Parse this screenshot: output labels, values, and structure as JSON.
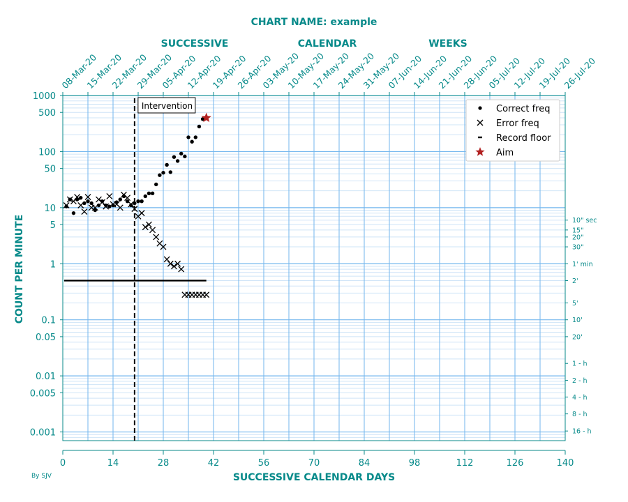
{
  "chart_data": {
    "type": "scatter",
    "title": "CHART NAME: example",
    "top_header_words": [
      "SUCCESSIVE",
      "CALENDAR",
      "WEEKS"
    ],
    "xlabel": "SUCCESSIVE CALENDAR DAYS",
    "ylabel": "COUNT PER MINUTE",
    "credit": "By SJV",
    "xlim": [
      0,
      140
    ],
    "ylim": [
      0.0007,
      1000
    ],
    "y_scale": "log",
    "grid": true,
    "legend_position": "top-right",
    "colors": {
      "text": "#078a8a",
      "grid": "#72b6ee",
      "grid_minor": "#cfe4f7",
      "axis": "#078a8a",
      "aim": "#b22222",
      "data": "#000000"
    },
    "x_ticks": [
      0,
      14,
      28,
      42,
      56,
      70,
      84,
      98,
      112,
      126,
      140
    ],
    "y_ticks": [
      {
        "v": 1000,
        "label": "1000"
      },
      {
        "v": 500,
        "label": "500"
      },
      {
        "v": 100,
        "label": "100"
      },
      {
        "v": 50,
        "label": "50"
      },
      {
        "v": 10,
        "label": "10"
      },
      {
        "v": 5,
        "label": "5"
      },
      {
        "v": 1,
        "label": "1"
      },
      {
        "v": 0.1,
        "label": "0.1"
      },
      {
        "v": 0.05,
        "label": "0.05"
      },
      {
        "v": 0.01,
        "label": "0.01"
      },
      {
        "v": 0.005,
        "label": "0.005"
      },
      {
        "v": 0.001,
        "label": "0.001"
      }
    ],
    "week_labels": [
      "08-Mar-20",
      "15-Mar-20",
      "22-Mar-20",
      "29-Mar-20",
      "05-Apr-20",
      "12-Apr-20",
      "19-Apr-20",
      "26-Apr-20",
      "03-May-20",
      "10-May-20",
      "17-May-20",
      "24-May-20",
      "31-May-20",
      "07-Jun-20",
      "14-Jun-20",
      "21-Jun-20",
      "28-Jun-20",
      "05-Jul-20",
      "12-Jul-20",
      "19-Jul-20",
      "26-Jul-20"
    ],
    "timing_labels": [
      {
        "v": 6,
        "label": "10\" sec"
      },
      {
        "v": 4,
        "label": "15\""
      },
      {
        "v": 3,
        "label": "20\""
      },
      {
        "v": 2,
        "label": "30\""
      },
      {
        "v": 1,
        "label": "1' min"
      },
      {
        "v": 0.5,
        "label": "2'"
      },
      {
        "v": 0.2,
        "label": "5'"
      },
      {
        "v": 0.1,
        "label": "10'"
      },
      {
        "v": 0.05,
        "label": "20'"
      },
      {
        "v": 0.0167,
        "label": "1 - h"
      },
      {
        "v": 0.0083,
        "label": "2 - h"
      },
      {
        "v": 0.0042,
        "label": "4 - h"
      },
      {
        "v": 0.0021,
        "label": "8 - h"
      },
      {
        "v": 0.00104,
        "label": "16 - h"
      }
    ],
    "phase_line": {
      "x": 20,
      "label": "Intervention"
    },
    "series": [
      {
        "name": "Correct freq",
        "marker": "dot",
        "points": [
          [
            1,
            10.5
          ],
          [
            2,
            14
          ],
          [
            3,
            8
          ],
          [
            4,
            14
          ],
          [
            5,
            15
          ],
          [
            6,
            12
          ],
          [
            7,
            13
          ],
          [
            8,
            12
          ],
          [
            9,
            9
          ],
          [
            10,
            11
          ],
          [
            11,
            13
          ],
          [
            12,
            11
          ],
          [
            13,
            10.5
          ],
          [
            14,
            11
          ],
          [
            15,
            12.5
          ],
          [
            16,
            14
          ],
          [
            17,
            16
          ],
          [
            18,
            13
          ],
          [
            19,
            11
          ],
          [
            20,
            12
          ],
          [
            21,
            13
          ],
          [
            22,
            13
          ],
          [
            23,
            16
          ],
          [
            24,
            18
          ],
          [
            25,
            18
          ],
          [
            26,
            26
          ],
          [
            27,
            38
          ],
          [
            28,
            42
          ],
          [
            29,
            58
          ],
          [
            30,
            43
          ],
          [
            31,
            80
          ],
          [
            32,
            68
          ],
          [
            33,
            92
          ],
          [
            34,
            82
          ],
          [
            35,
            180
          ],
          [
            36,
            150
          ],
          [
            37,
            180
          ],
          [
            38,
            280
          ],
          [
            39,
            380
          ]
        ]
      },
      {
        "name": "Error freq",
        "marker": "x",
        "points": [
          [
            1,
            11
          ],
          [
            2,
            14
          ],
          [
            3,
            13
          ],
          [
            4,
            15.5
          ],
          [
            5,
            11
          ],
          [
            6,
            8.5
          ],
          [
            7,
            15.5
          ],
          [
            8,
            10
          ],
          [
            9,
            10
          ],
          [
            10,
            14
          ],
          [
            11,
            12.5
          ],
          [
            12,
            10.5
          ],
          [
            13,
            16
          ],
          [
            14,
            11.5
          ],
          [
            15,
            11.5
          ],
          [
            16,
            10
          ],
          [
            17,
            17
          ],
          [
            18,
            15
          ],
          [
            19,
            11.5
          ],
          [
            20,
            9.5
          ],
          [
            21,
            7
          ],
          [
            22,
            8
          ],
          [
            23,
            4.5
          ],
          [
            24,
            5
          ],
          [
            25,
            4
          ],
          [
            26,
            3
          ],
          [
            27,
            2.3
          ],
          [
            28,
            2
          ],
          [
            29,
            1.2
          ],
          [
            30,
            1
          ],
          [
            31,
            0.9
          ],
          [
            32,
            1
          ],
          [
            33,
            0.8
          ],
          [
            34,
            0.28
          ],
          [
            35,
            0.28
          ],
          [
            36,
            0.28
          ],
          [
            37,
            0.28
          ],
          [
            38,
            0.28
          ],
          [
            39,
            0.28
          ],
          [
            40,
            0.28
          ]
        ]
      },
      {
        "name": "Record floor",
        "marker": "dash",
        "points": [
          [
            0,
            0.5
          ],
          [
            40,
            0.5
          ]
        ]
      },
      {
        "name": "Aim",
        "marker": "star",
        "points": [
          [
            40,
            400
          ]
        ]
      }
    ]
  }
}
